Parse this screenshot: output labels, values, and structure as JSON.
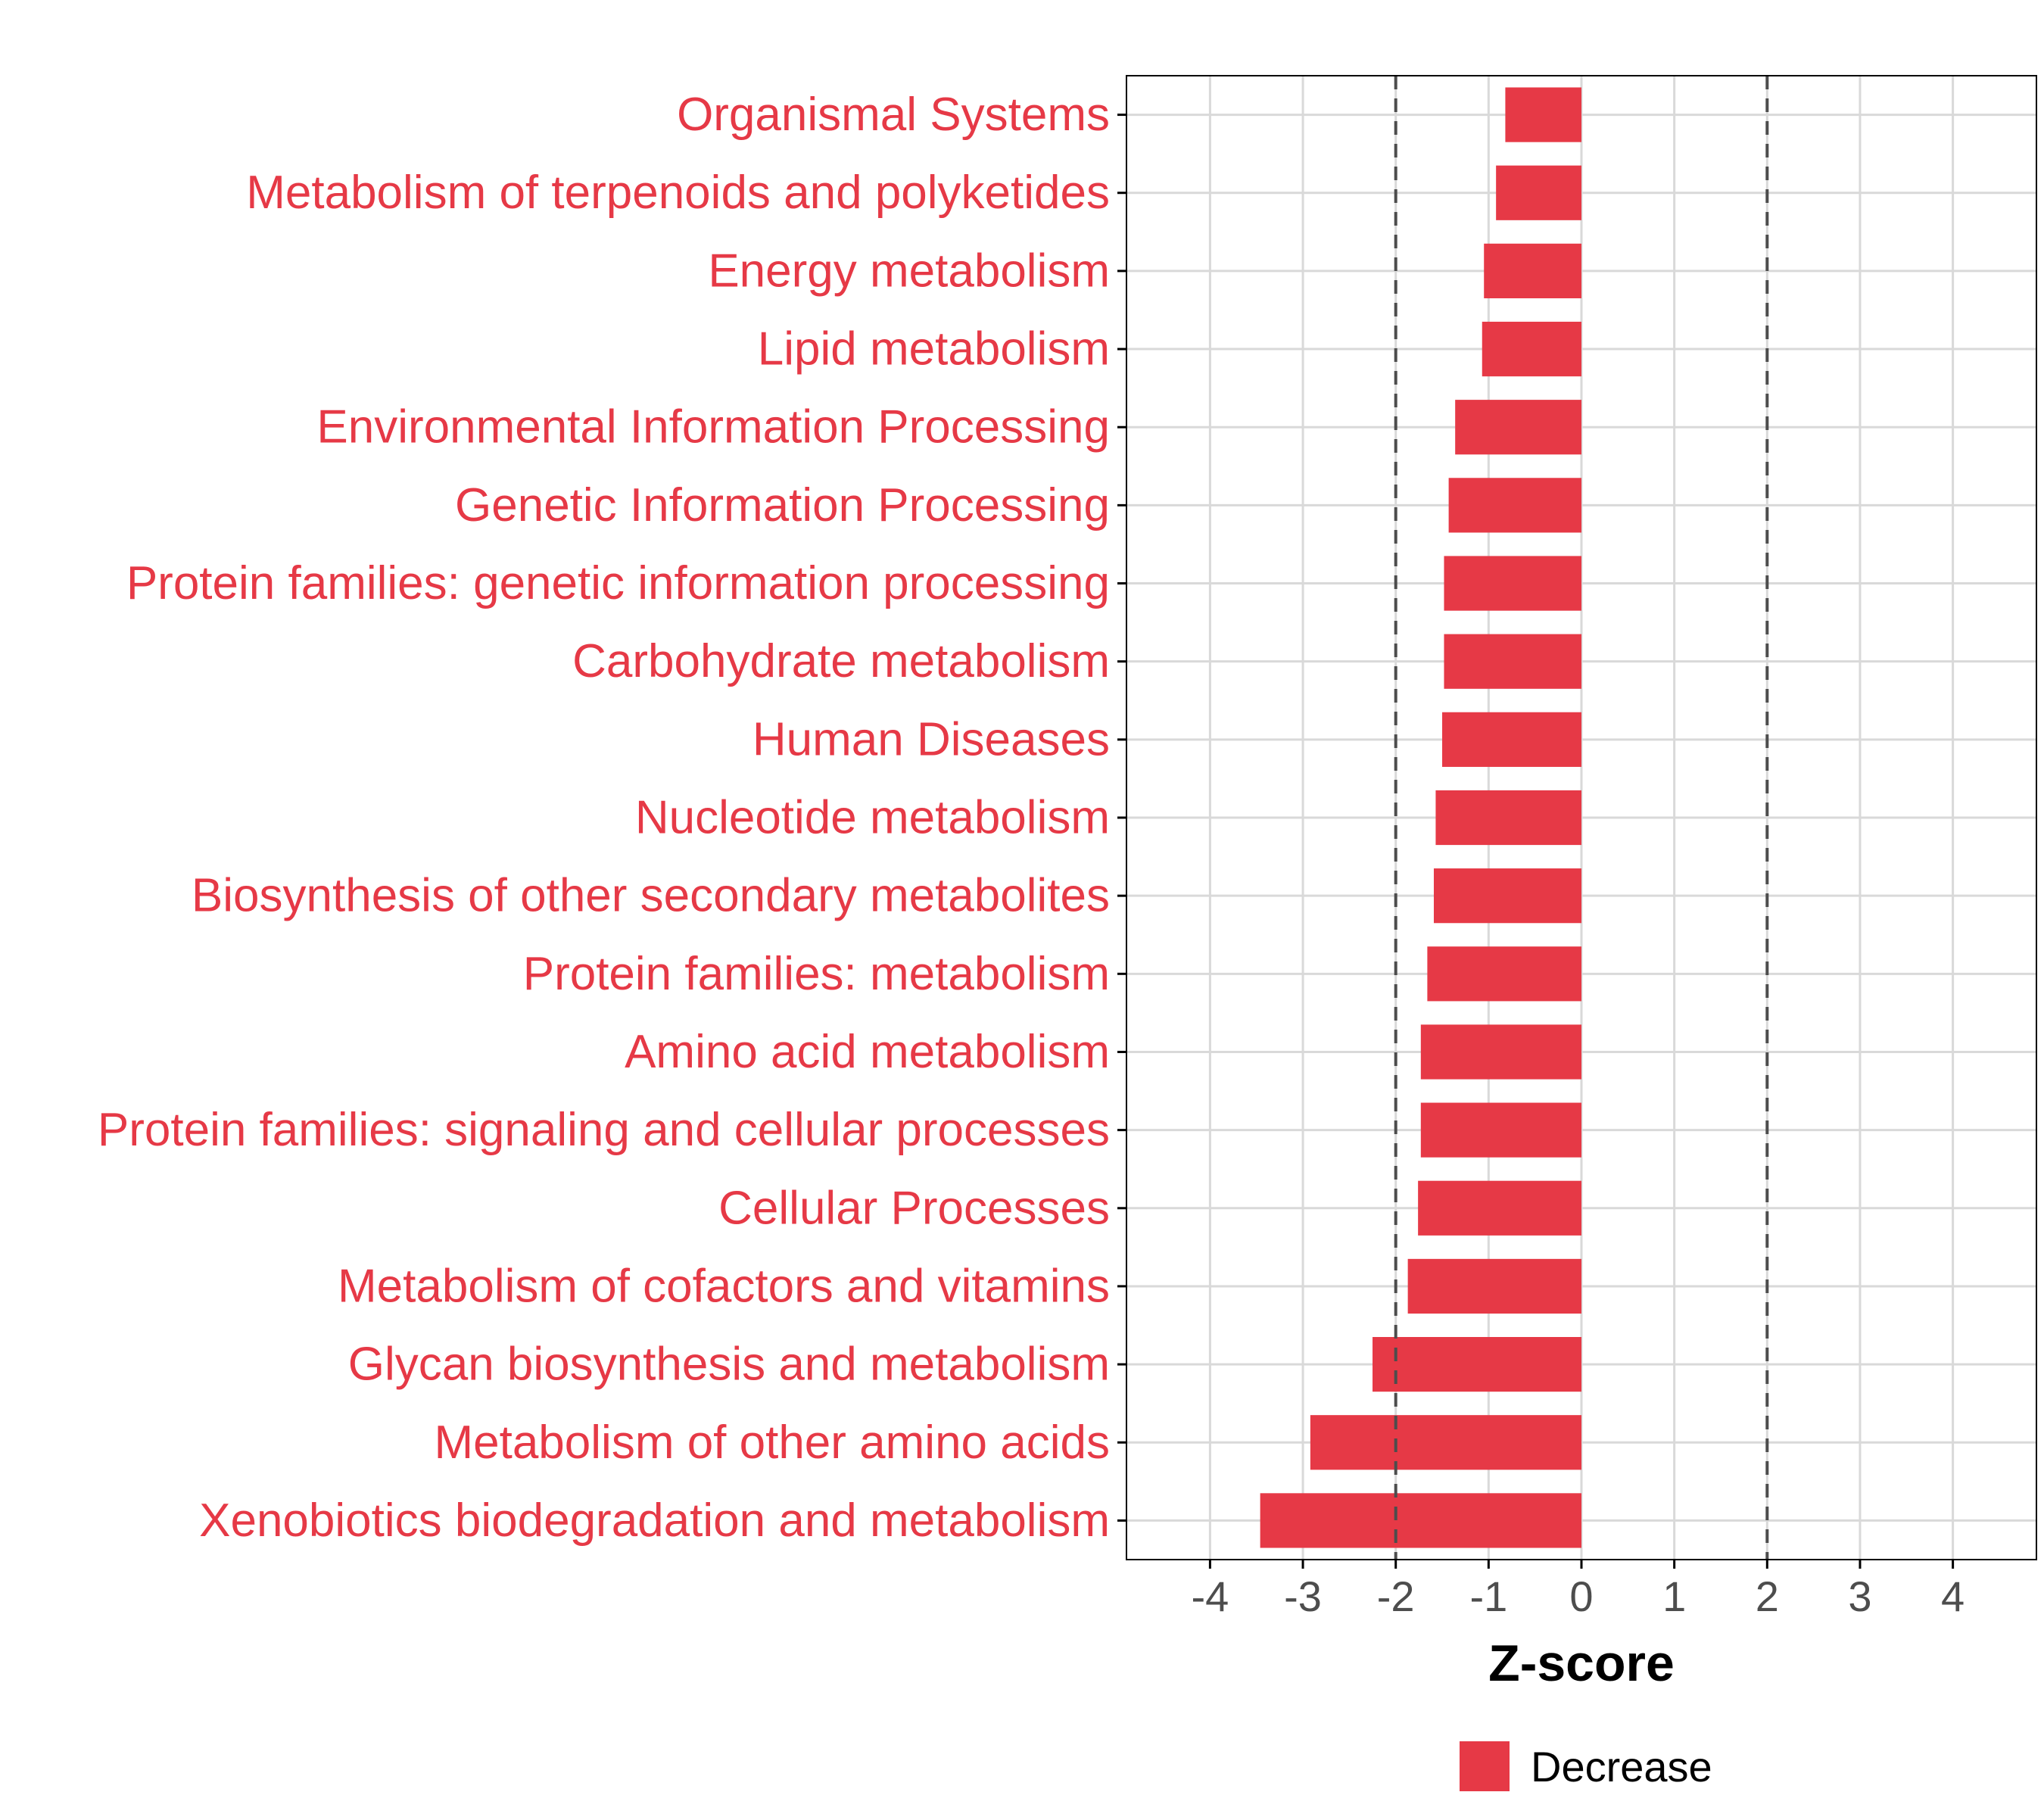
{
  "chart_data": {
    "type": "bar",
    "orientation": "horizontal",
    "categories": [
      "Organismal Systems",
      "Metabolism of terpenoids and polyketides",
      "Energy metabolism",
      "Lipid metabolism",
      "Environmental Information Processing",
      "Genetic Information Processing",
      "Protein families: genetic information processing",
      "Carbohydrate metabolism",
      "Human Diseases",
      "Nucleotide metabolism",
      "Biosynthesis of other secondary metabolites",
      "Protein families: metabolism",
      "Amino acid metabolism",
      "Protein families: signaling and cellular processes",
      "Cellular Processes",
      "Metabolism of cofactors and vitamins",
      "Glycan biosynthesis and metabolism",
      "Metabolism of other amino acids",
      "Xenobiotics biodegradation and metabolism"
    ],
    "values": [
      -0.82,
      -0.92,
      -1.05,
      -1.07,
      -1.36,
      -1.43,
      -1.48,
      -1.48,
      -1.5,
      -1.57,
      -1.59,
      -1.66,
      -1.73,
      -1.73,
      -1.76,
      -1.87,
      -2.25,
      -2.92,
      -3.46
    ],
    "xlabel": "Z-score",
    "ylabel": "",
    "xlim": [
      -4.9,
      4.9
    ],
    "x_ticks": [
      "-4",
      "-3",
      "-2",
      "-1",
      "0",
      "1",
      "2",
      "3",
      "4"
    ],
    "threshold_lines": [
      -2,
      2
    ],
    "grid": true,
    "legend": {
      "position": "bottom",
      "entries": [
        {
          "name": "Decrease",
          "color": "#E63946"
        }
      ]
    },
    "colors": {
      "bar": "#E63946",
      "label": "#E63946",
      "grid": "#d9d9d9",
      "threshold": "#4d4d4d",
      "axis": "#000000"
    }
  }
}
